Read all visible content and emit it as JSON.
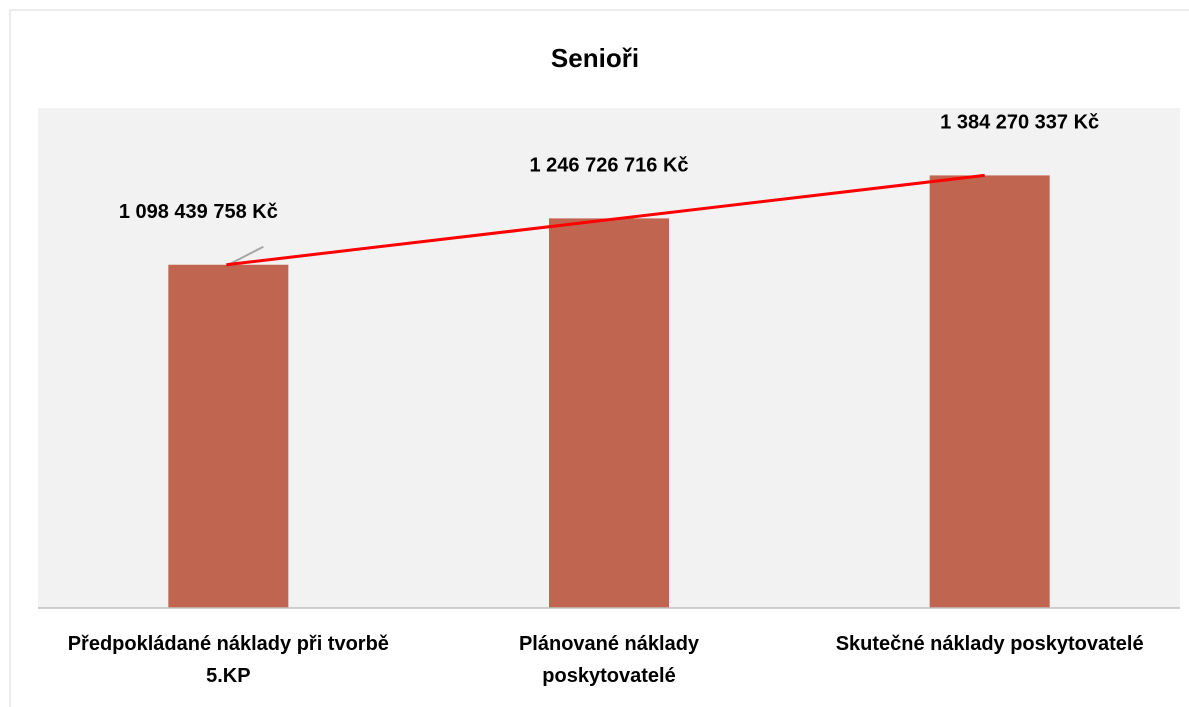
{
  "chart_data": {
    "type": "bar",
    "title": "Senioři",
    "categories": [
      "Předpokládané náklady při tvorbě 5.KP",
      "Plánované náklady poskytovatelé",
      "Skutečné náklady poskytovatelé"
    ],
    "values": [
      1098439758,
      1246726716,
      1384270337
    ],
    "value_labels": [
      "1 098 439 758 Kč",
      "1 246 726 716 Kč",
      "1 384 270 337 Kč"
    ],
    "color": "#c0654f",
    "trendline_color": "#ff0000",
    "ylim": [
      0,
      1600000000
    ]
  }
}
